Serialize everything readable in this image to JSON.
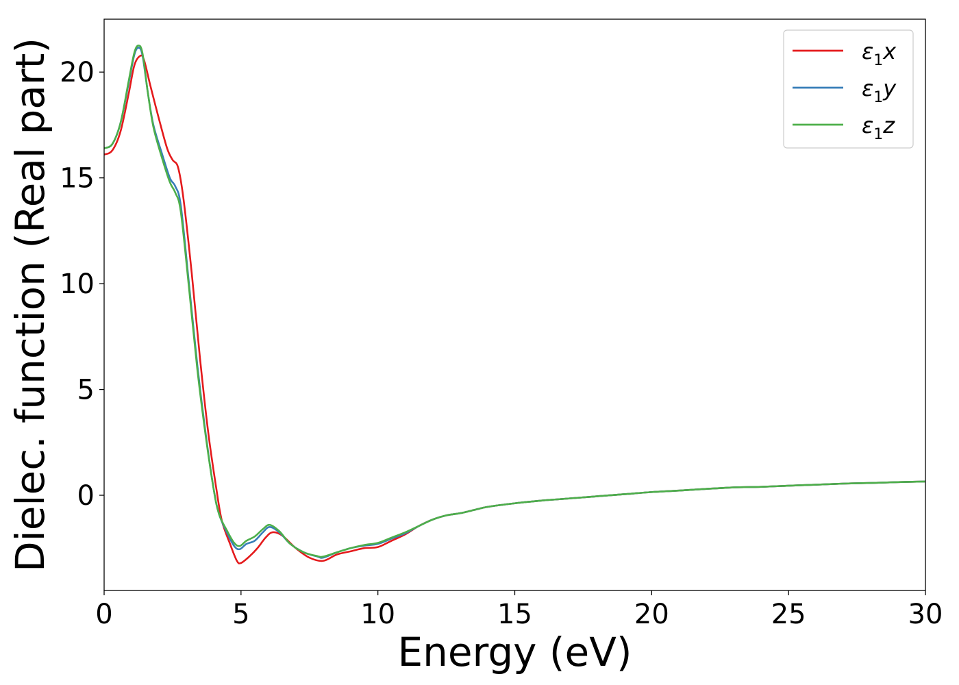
{
  "chart_data": {
    "type": "line",
    "title": "",
    "xlabel": "Energy (eV)",
    "ylabel": "Dielec. function (Real part)",
    "xlim": [
      0,
      30
    ],
    "ylim": [
      -4.5,
      22.5
    ],
    "xticks": [
      0,
      5,
      10,
      15,
      20,
      25,
      30
    ],
    "yticks": [
      0,
      5,
      10,
      15,
      20
    ],
    "grid": false,
    "legend_position": "top-right",
    "series": [
      {
        "name": "ε₁x",
        "legend": {
          "base": "ε",
          "sub": "1",
          "var": "x"
        },
        "color": "#e41a1c",
        "points": [
          [
            0,
            16.1
          ],
          [
            0.3,
            16.3
          ],
          [
            0.6,
            17.2
          ],
          [
            0.9,
            19.0
          ],
          [
            1.1,
            20.3
          ],
          [
            1.3,
            20.75
          ],
          [
            1.45,
            20.6
          ],
          [
            1.7,
            19.3
          ],
          [
            2.0,
            17.8
          ],
          [
            2.3,
            16.4
          ],
          [
            2.5,
            15.85
          ],
          [
            2.7,
            15.5
          ],
          [
            2.9,
            14.0
          ],
          [
            3.2,
            10.5
          ],
          [
            3.5,
            6.5
          ],
          [
            3.8,
            3.0
          ],
          [
            4.1,
            0.3
          ],
          [
            4.3,
            -1.2
          ],
          [
            4.6,
            -2.3
          ],
          [
            4.85,
            -3.1
          ],
          [
            5.0,
            -3.2
          ],
          [
            5.3,
            -2.9
          ],
          [
            5.6,
            -2.5
          ],
          [
            5.9,
            -2.0
          ],
          [
            6.15,
            -1.75
          ],
          [
            6.5,
            -1.9
          ],
          [
            7.0,
            -2.5
          ],
          [
            7.5,
            -2.95
          ],
          [
            8.0,
            -3.1
          ],
          [
            8.5,
            -2.8
          ],
          [
            9.0,
            -2.65
          ],
          [
            9.5,
            -2.5
          ],
          [
            10.0,
            -2.45
          ],
          [
            10.5,
            -2.15
          ],
          [
            11.0,
            -1.85
          ],
          [
            11.5,
            -1.45
          ],
          [
            12.0,
            -1.15
          ],
          [
            12.5,
            -0.95
          ],
          [
            13.0,
            -0.85
          ],
          [
            13.5,
            -0.7
          ],
          [
            14.0,
            -0.55
          ],
          [
            15.0,
            -0.38
          ],
          [
            16.0,
            -0.25
          ],
          [
            17.0,
            -0.15
          ],
          [
            18.0,
            -0.05
          ],
          [
            19.0,
            0.05
          ],
          [
            20.0,
            0.15
          ],
          [
            21.0,
            0.22
          ],
          [
            22.0,
            0.3
          ],
          [
            23.0,
            0.37
          ],
          [
            24.0,
            0.4
          ],
          [
            25.0,
            0.45
          ],
          [
            26.0,
            0.5
          ],
          [
            27.0,
            0.55
          ],
          [
            28.0,
            0.58
          ],
          [
            29.0,
            0.62
          ],
          [
            30.0,
            0.65
          ]
        ]
      },
      {
        "name": "ε₁y",
        "legend": {
          "base": "ε",
          "sub": "1",
          "var": "y"
        },
        "color": "#377eb8",
        "points": [
          [
            0,
            16.4
          ],
          [
            0.3,
            16.6
          ],
          [
            0.6,
            17.6
          ],
          [
            0.9,
            19.5
          ],
          [
            1.1,
            20.8
          ],
          [
            1.25,
            21.15
          ],
          [
            1.4,
            20.8
          ],
          [
            1.6,
            19.0
          ],
          [
            1.8,
            17.5
          ],
          [
            2.1,
            16.2
          ],
          [
            2.4,
            15.0
          ],
          [
            2.6,
            14.6
          ],
          [
            2.8,
            13.7
          ],
          [
            3.1,
            10.0
          ],
          [
            3.4,
            6.2
          ],
          [
            3.7,
            3.0
          ],
          [
            4.0,
            0.3
          ],
          [
            4.2,
            -0.9
          ],
          [
            4.5,
            -1.8
          ],
          [
            4.75,
            -2.4
          ],
          [
            4.95,
            -2.55
          ],
          [
            5.2,
            -2.3
          ],
          [
            5.5,
            -2.15
          ],
          [
            5.8,
            -1.75
          ],
          [
            6.05,
            -1.5
          ],
          [
            6.4,
            -1.75
          ],
          [
            6.8,
            -2.3
          ],
          [
            7.3,
            -2.7
          ],
          [
            7.8,
            -2.9
          ],
          [
            8.0,
            -2.95
          ],
          [
            8.5,
            -2.7
          ],
          [
            9.0,
            -2.5
          ],
          [
            9.5,
            -2.38
          ],
          [
            10.0,
            -2.3
          ],
          [
            10.5,
            -2.05
          ],
          [
            11.0,
            -1.8
          ],
          [
            11.5,
            -1.45
          ],
          [
            12.0,
            -1.15
          ],
          [
            12.5,
            -0.95
          ],
          [
            13.0,
            -0.85
          ],
          [
            13.5,
            -0.7
          ],
          [
            14.0,
            -0.55
          ],
          [
            15.0,
            -0.38
          ],
          [
            16.0,
            -0.25
          ],
          [
            17.0,
            -0.15
          ],
          [
            18.0,
            -0.05
          ],
          [
            19.0,
            0.05
          ],
          [
            20.0,
            0.15
          ],
          [
            21.0,
            0.22
          ],
          [
            22.0,
            0.3
          ],
          [
            23.0,
            0.37
          ],
          [
            24.0,
            0.4
          ],
          [
            25.0,
            0.45
          ],
          [
            26.0,
            0.5
          ],
          [
            27.0,
            0.55
          ],
          [
            28.0,
            0.58
          ],
          [
            29.0,
            0.62
          ],
          [
            30.0,
            0.65
          ]
        ]
      },
      {
        "name": "ε₁z",
        "legend": {
          "base": "ε",
          "sub": "1",
          "var": "z"
        },
        "color": "#4daf4a",
        "points": [
          [
            0,
            16.4
          ],
          [
            0.3,
            16.6
          ],
          [
            0.6,
            17.6
          ],
          [
            0.9,
            19.6
          ],
          [
            1.1,
            20.9
          ],
          [
            1.25,
            21.25
          ],
          [
            1.4,
            20.9
          ],
          [
            1.6,
            19.0
          ],
          [
            1.8,
            17.4
          ],
          [
            2.1,
            16.0
          ],
          [
            2.4,
            14.8
          ],
          [
            2.6,
            14.3
          ],
          [
            2.8,
            13.4
          ],
          [
            3.1,
            9.8
          ],
          [
            3.4,
            6.0
          ],
          [
            3.7,
            2.9
          ],
          [
            4.0,
            0.3
          ],
          [
            4.2,
            -0.9
          ],
          [
            4.5,
            -1.7
          ],
          [
            4.75,
            -2.25
          ],
          [
            4.95,
            -2.4
          ],
          [
            5.2,
            -2.15
          ],
          [
            5.5,
            -1.95
          ],
          [
            5.8,
            -1.6
          ],
          [
            6.05,
            -1.4
          ],
          [
            6.4,
            -1.7
          ],
          [
            6.8,
            -2.3
          ],
          [
            7.3,
            -2.7
          ],
          [
            7.8,
            -2.88
          ],
          [
            8.0,
            -2.9
          ],
          [
            8.5,
            -2.7
          ],
          [
            9.0,
            -2.5
          ],
          [
            9.5,
            -2.35
          ],
          [
            10.0,
            -2.25
          ],
          [
            10.5,
            -2.0
          ],
          [
            11.0,
            -1.75
          ],
          [
            11.5,
            -1.45
          ],
          [
            12.0,
            -1.15
          ],
          [
            12.5,
            -0.95
          ],
          [
            13.0,
            -0.85
          ],
          [
            13.5,
            -0.7
          ],
          [
            14.0,
            -0.55
          ],
          [
            15.0,
            -0.38
          ],
          [
            16.0,
            -0.25
          ],
          [
            17.0,
            -0.15
          ],
          [
            18.0,
            -0.05
          ],
          [
            19.0,
            0.05
          ],
          [
            20.0,
            0.15
          ],
          [
            21.0,
            0.22
          ],
          [
            22.0,
            0.3
          ],
          [
            23.0,
            0.37
          ],
          [
            24.0,
            0.4
          ],
          [
            25.0,
            0.45
          ],
          [
            26.0,
            0.5
          ],
          [
            27.0,
            0.55
          ],
          [
            28.0,
            0.58
          ],
          [
            29.0,
            0.62
          ],
          [
            30.0,
            0.65
          ]
        ]
      }
    ]
  }
}
